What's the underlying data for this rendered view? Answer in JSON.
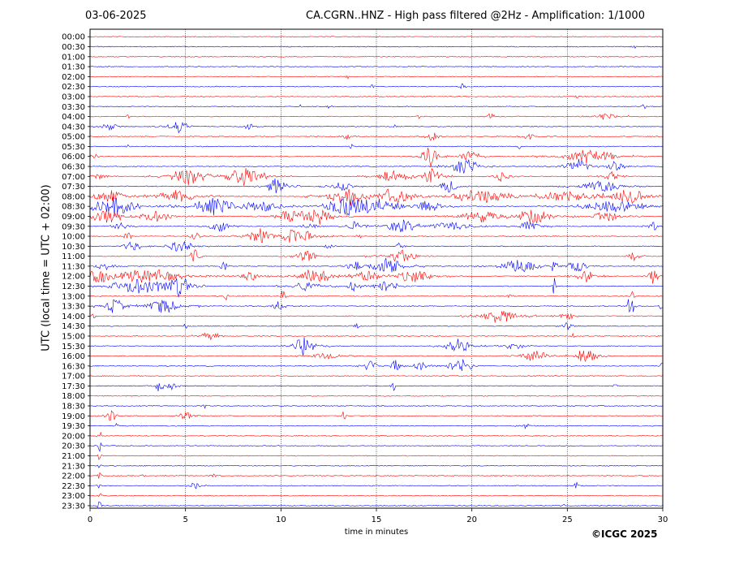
{
  "header": {
    "date": "03-06-2025",
    "title": "CA.CGRN..HNZ - High pass filtered @2Hz - Amplification: 1/1000"
  },
  "footer": {
    "copyright": "©ICGC 2025"
  },
  "chart_data": {
    "type": "line",
    "title": "CA.CGRN..HNZ - High pass filtered @2Hz - Amplification: 1/1000",
    "xlabel": "time in minutes",
    "ylabel": "UTC (local time = UTC + 02:00)",
    "xlim": [
      0,
      30
    ],
    "x_ticks": [
      0,
      5,
      10,
      15,
      20,
      25,
      30
    ],
    "grid": "vertical dotted lines every 5 minutes",
    "series_colors": [
      "#ff0000",
      "#0000ff"
    ],
    "rows": [
      {
        "time": "00:00",
        "events": []
      },
      {
        "time": "00:30",
        "events": [
          [
            28.5,
            0.1,
            3
          ]
        ]
      },
      {
        "time": "01:00",
        "events": []
      },
      {
        "time": "01:30",
        "events": []
      },
      {
        "time": "02:00",
        "events": [
          [
            13.5,
            0.1,
            3
          ]
        ]
      },
      {
        "time": "02:30",
        "events": [
          [
            14.8,
            0.1,
            3
          ],
          [
            19.5,
            0.15,
            4
          ]
        ]
      },
      {
        "time": "03:00",
        "events": [
          [
            25.5,
            0.1,
            3
          ]
        ]
      },
      {
        "time": "03:30",
        "events": [
          [
            11.0,
            0.1,
            2
          ],
          [
            12.5,
            0.1,
            2
          ],
          [
            29.0,
            0.1,
            4
          ]
        ]
      },
      {
        "time": "04:00",
        "events": [
          [
            2.0,
            0.1,
            3
          ],
          [
            17.2,
            0.1,
            4
          ],
          [
            21.0,
            0.2,
            4
          ],
          [
            27.0,
            0.6,
            4
          ]
        ]
      },
      {
        "time": "04:30",
        "events": [
          [
            1.0,
            0.5,
            4
          ],
          [
            4.6,
            0.6,
            7
          ],
          [
            8.3,
            0.3,
            5
          ],
          [
            16.0,
            0.1,
            3
          ]
        ]
      },
      {
        "time": "05:00",
        "events": [
          [
            13.5,
            0.3,
            3
          ],
          [
            17.9,
            0.4,
            5
          ],
          [
            23.0,
            0.4,
            4
          ]
        ]
      },
      {
        "time": "05:30",
        "events": [
          [
            2.0,
            0.1,
            2
          ],
          [
            13.7,
            0.1,
            3
          ],
          [
            22.5,
            0.1,
            3
          ]
        ]
      },
      {
        "time": "06:00",
        "events": [
          [
            0.2,
            0.3,
            4
          ],
          [
            17.8,
            0.5,
            12
          ],
          [
            19.9,
            0.6,
            7
          ],
          [
            26.2,
            1.5,
            8
          ]
        ]
      },
      {
        "time": "06:30",
        "events": [
          [
            19.6,
            0.8,
            10
          ],
          [
            25.5,
            0.8,
            8
          ],
          [
            27.5,
            0.5,
            6
          ]
        ]
      },
      {
        "time": "07:00",
        "events": [
          [
            0.5,
            0.5,
            3
          ],
          [
            5.2,
            1.2,
            9
          ],
          [
            8.2,
            1.2,
            10
          ],
          [
            15.9,
            1.0,
            6
          ],
          [
            17.9,
            0.6,
            8
          ],
          [
            21.5,
            0.5,
            6
          ],
          [
            27.3,
            0.4,
            5
          ]
        ]
      },
      {
        "time": "07:30",
        "events": [
          [
            9.8,
            0.6,
            10
          ],
          [
            13.2,
            0.6,
            5
          ],
          [
            18.8,
            0.6,
            6
          ],
          [
            26.8,
            1.2,
            7
          ]
        ]
      },
      {
        "time": "08:00",
        "events": [
          [
            1.0,
            1.0,
            7
          ],
          [
            4.5,
            1.2,
            7
          ],
          [
            13.5,
            1.2,
            10
          ],
          [
            16.0,
            1.0,
            8
          ],
          [
            20.5,
            2.0,
            7
          ],
          [
            25.0,
            2.0,
            5
          ],
          [
            28.3,
            1.5,
            7
          ]
        ]
      },
      {
        "time": "08:30",
        "events": [
          [
            1.2,
            1.6,
            10
          ],
          [
            6.5,
            1.2,
            9
          ],
          [
            9.0,
            1.2,
            6
          ],
          [
            13.5,
            1.5,
            9
          ],
          [
            15.2,
            1.2,
            8
          ],
          [
            17.8,
            0.8,
            6
          ],
          [
            27.5,
            2.0,
            6
          ]
        ]
      },
      {
        "time": "09:00",
        "events": [
          [
            0.9,
            1.0,
            8
          ],
          [
            3.5,
            1.0,
            6
          ],
          [
            10.5,
            1.0,
            6
          ],
          [
            12.0,
            1.0,
            8
          ],
          [
            20.5,
            1.5,
            6
          ],
          [
            23.3,
            1.0,
            9
          ],
          [
            27.0,
            1.0,
            6
          ]
        ]
      },
      {
        "time": "09:30",
        "events": [
          [
            1.5,
            0.5,
            5
          ],
          [
            6.8,
            0.6,
            6
          ],
          [
            11.5,
            0.4,
            5
          ],
          [
            13.8,
            0.4,
            6
          ],
          [
            16.3,
            1.0,
            7
          ],
          [
            19.0,
            1.2,
            5
          ],
          [
            23.0,
            0.6,
            6
          ],
          [
            29.5,
            0.3,
            5
          ]
        ]
      },
      {
        "time": "10:00",
        "events": [
          [
            2.0,
            0.3,
            4
          ],
          [
            5.5,
            0.3,
            5
          ],
          [
            8.9,
            0.8,
            8
          ],
          [
            10.8,
            1.0,
            9
          ],
          [
            14.1,
            0.1,
            9
          ]
        ]
      },
      {
        "time": "10:30",
        "events": [
          [
            2.2,
            0.6,
            5
          ],
          [
            4.7,
            0.8,
            6
          ],
          [
            12.5,
            0.2,
            4
          ],
          [
            16.2,
            0.2,
            4
          ]
        ]
      },
      {
        "time": "11:00",
        "events": [
          [
            5.5,
            0.3,
            8
          ],
          [
            11.3,
            0.6,
            7
          ],
          [
            16.3,
            1.0,
            7
          ],
          [
            28.5,
            0.3,
            5
          ]
        ]
      },
      {
        "time": "11:30",
        "events": [
          [
            0.8,
            0.6,
            4
          ],
          [
            7.0,
            0.2,
            5
          ],
          [
            13.8,
            0.4,
            6
          ],
          [
            15.5,
            1.0,
            10
          ],
          [
            22.5,
            1.2,
            7
          ],
          [
            24.3,
            0.1,
            18
          ],
          [
            25.5,
            0.6,
            7
          ]
        ]
      },
      {
        "time": "12:00",
        "events": [
          [
            0.5,
            1.0,
            7
          ],
          [
            3.0,
            2.0,
            8
          ],
          [
            8.3,
            0.6,
            6
          ],
          [
            11.8,
            1.0,
            9
          ],
          [
            14.5,
            0.8,
            6
          ],
          [
            17.0,
            1.0,
            7
          ],
          [
            26.0,
            0.6,
            6
          ],
          [
            29.5,
            0.3,
            10
          ]
        ]
      },
      {
        "time": "12:30",
        "events": [
          [
            2.7,
            1.8,
            9
          ],
          [
            4.7,
            0.6,
            10
          ],
          [
            11.3,
            0.8,
            6
          ],
          [
            13.8,
            0.4,
            6
          ],
          [
            15.5,
            0.8,
            6
          ],
          [
            24.3,
            0.1,
            12
          ]
        ]
      },
      {
        "time": "13:00",
        "events": [
          [
            7.1,
            0.1,
            6
          ],
          [
            10.1,
            0.1,
            14
          ],
          [
            28.4,
            0.1,
            10
          ],
          [
            22.0,
            0.1,
            12
          ]
        ]
      },
      {
        "time": "13:30",
        "events": [
          [
            1.3,
            0.6,
            8
          ],
          [
            3.8,
            1.0,
            8
          ],
          [
            9.9,
            0.4,
            6
          ],
          [
            28.3,
            0.2,
            16
          ],
          [
            29.9,
            0.1,
            5
          ]
        ]
      },
      {
        "time": "14:00",
        "events": [
          [
            0.1,
            0.2,
            5
          ],
          [
            21.4,
            1.0,
            8
          ],
          [
            25.0,
            0.5,
            4
          ]
        ]
      },
      {
        "time": "14:30",
        "events": [
          [
            5.0,
            0.1,
            3
          ],
          [
            14.0,
            0.2,
            3
          ],
          [
            25.0,
            0.3,
            5
          ]
        ]
      },
      {
        "time": "15:00",
        "events": [
          [
            6.3,
            0.5,
            6
          ],
          [
            25.3,
            0.1,
            3
          ]
        ]
      },
      {
        "time": "15:30",
        "events": [
          [
            11.2,
            0.7,
            10
          ],
          [
            19.3,
            0.8,
            8
          ],
          [
            22.2,
            0.5,
            5
          ]
        ]
      },
      {
        "time": "16:00",
        "events": [
          [
            12.3,
            0.8,
            4
          ],
          [
            23.3,
            0.8,
            6
          ],
          [
            26.0,
            0.6,
            9
          ]
        ]
      },
      {
        "time": "16:30",
        "events": [
          [
            14.7,
            0.4,
            6
          ],
          [
            16.0,
            0.3,
            6
          ],
          [
            17.3,
            0.4,
            5
          ],
          [
            19.4,
            0.8,
            8
          ],
          [
            30.0,
            0.1,
            9
          ]
        ]
      },
      {
        "time": "17:00",
        "events": []
      },
      {
        "time": "17:30",
        "events": [
          [
            3.6,
            0.3,
            6
          ],
          [
            4.2,
            0.3,
            6
          ],
          [
            15.9,
            0.1,
            8
          ],
          [
            27.5,
            0.1,
            4
          ]
        ]
      },
      {
        "time": "18:00",
        "events": []
      },
      {
        "time": "18:30",
        "events": [
          [
            6.0,
            0.1,
            3
          ]
        ]
      },
      {
        "time": "19:00",
        "events": [
          [
            1.1,
            0.4,
            6
          ],
          [
            5.0,
            0.4,
            5
          ],
          [
            13.3,
            0.1,
            8
          ]
        ]
      },
      {
        "time": "19:30",
        "events": [
          [
            1.4,
            0.1,
            3
          ],
          [
            22.8,
            0.3,
            3
          ]
        ]
      },
      {
        "time": "20:00",
        "events": [
          [
            0.5,
            0.1,
            8
          ]
        ]
      },
      {
        "time": "20:30",
        "events": [
          [
            0.5,
            0.1,
            6
          ]
        ]
      },
      {
        "time": "21:00",
        "events": [
          [
            0.5,
            0.1,
            6
          ]
        ]
      },
      {
        "time": "21:30",
        "events": [
          [
            0.5,
            0.1,
            6
          ]
        ]
      },
      {
        "time": "22:00",
        "events": [
          [
            0.5,
            0.1,
            6
          ],
          [
            2.8,
            0.1,
            2
          ],
          [
            6.5,
            0.2,
            2
          ]
        ]
      },
      {
        "time": "22:30",
        "events": [
          [
            0.5,
            0.1,
            6
          ],
          [
            5.5,
            0.3,
            4
          ],
          [
            25.5,
            0.2,
            4
          ]
        ]
      },
      {
        "time": "23:00",
        "events": [
          [
            0.5,
            0.1,
            6
          ]
        ]
      },
      {
        "time": "23:30",
        "events": [
          [
            0.5,
            0.1,
            8
          ],
          [
            24.8,
            0.1,
            2
          ]
        ]
      }
    ]
  }
}
